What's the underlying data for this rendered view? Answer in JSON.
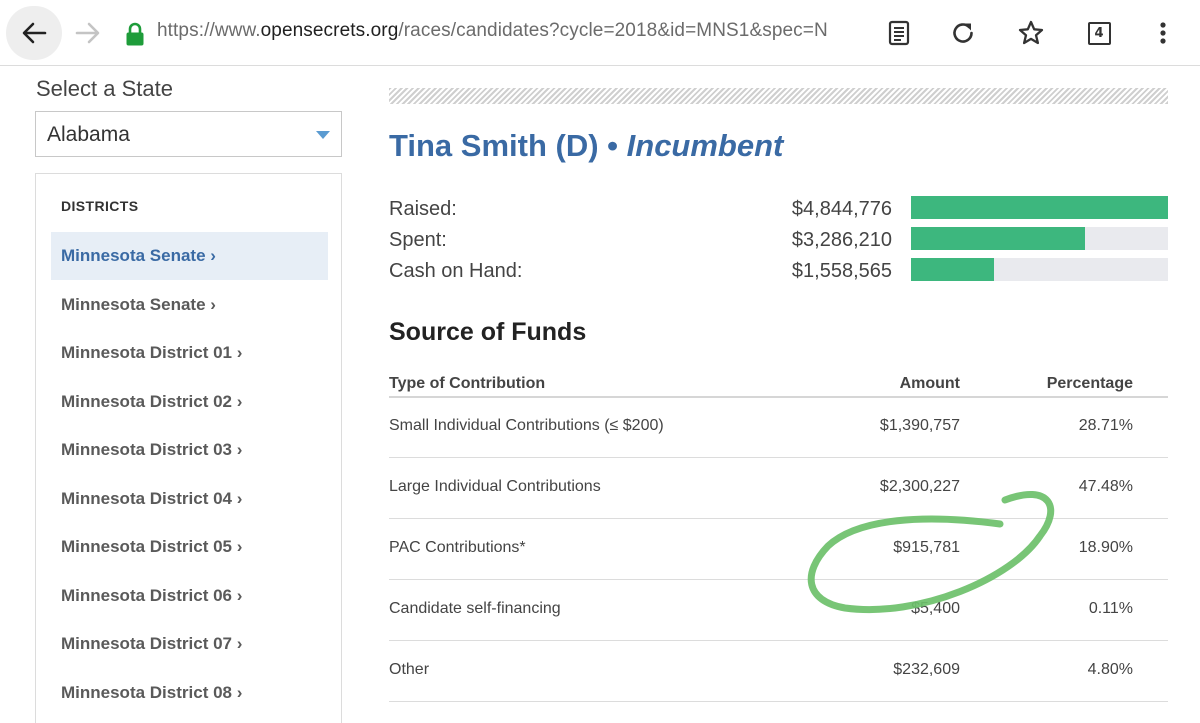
{
  "browser": {
    "url_prefix": "https://www.",
    "url_host": "opensecrets.org",
    "url_path": "/races/candidates?cycle=2018&id=MNS1&spec=N",
    "tab_count": "4"
  },
  "sidebar": {
    "select_label": "Select a State",
    "selected_state": "Alabama",
    "districts_title": "DISTRICTS",
    "items": [
      {
        "label": "Minnesota Senate ›",
        "active": true
      },
      {
        "label": "Minnesota Senate ›",
        "active": false
      },
      {
        "label": "Minnesota District 01 ›",
        "active": false
      },
      {
        "label": "Minnesota District 02 ›",
        "active": false
      },
      {
        "label": "Minnesota District 03 ›",
        "active": false
      },
      {
        "label": "Minnesota District 04 ›",
        "active": false
      },
      {
        "label": "Minnesota District 05 ›",
        "active": false
      },
      {
        "label": "Minnesota District 06 ›",
        "active": false
      },
      {
        "label": "Minnesota District 07 ›",
        "active": false
      },
      {
        "label": "Minnesota District 08 ›",
        "active": false
      }
    ]
  },
  "candidate": {
    "name": "Tina Smith (D)",
    "separator": " • ",
    "status": "Incumbent"
  },
  "finances": [
    {
      "label": "Raised:",
      "value": "$4,844,776",
      "fraction": 1.0
    },
    {
      "label": "Spent:",
      "value": "$3,286,210",
      "fraction": 0.678
    },
    {
      "label": "Cash on Hand:",
      "value": "$1,558,565",
      "fraction": 0.322
    }
  ],
  "funds": {
    "title": "Source of Funds",
    "headers": {
      "type": "Type of Contribution",
      "amount": "Amount",
      "percentage": "Percentage"
    },
    "rows": [
      {
        "type": "Small Individual Contributions (≤ $200)",
        "amount": "$1,390,757",
        "percentage": "28.71%"
      },
      {
        "type": "Large Individual Contributions",
        "amount": "$2,300,227",
        "percentage": "47.48%"
      },
      {
        "type": "PAC Contributions*",
        "amount": "$915,781",
        "percentage": "18.90%"
      },
      {
        "type": "Candidate self-financing",
        "amount": "$5,400",
        "percentage": "0.11%"
      },
      {
        "type": "Other",
        "amount": "$232,609",
        "percentage": "4.80%"
      }
    ]
  },
  "colors": {
    "accent_blue": "#3a6aa4",
    "bar_green": "#3db77e",
    "annotation_green": "#6cc06a"
  }
}
